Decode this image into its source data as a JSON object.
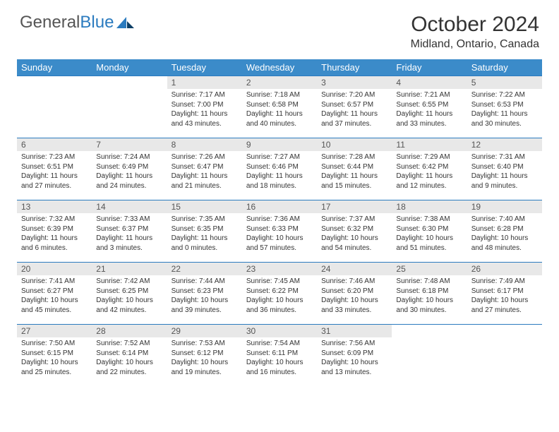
{
  "logo": {
    "text1": "General",
    "text2": "Blue"
  },
  "title": "October 2024",
  "location": "Midland, Ontario, Canada",
  "colors": {
    "header_bg": "#3b8bc9",
    "header_text": "#ffffff",
    "daynum_bg": "#e8e8e8",
    "border": "#2b7bbf",
    "logo_gray": "#555555",
    "logo_blue": "#2b7bbf"
  },
  "day_headers": [
    "Sunday",
    "Monday",
    "Tuesday",
    "Wednesday",
    "Thursday",
    "Friday",
    "Saturday"
  ],
  "weeks": [
    [
      null,
      null,
      {
        "n": "1",
        "sr": "7:17 AM",
        "ss": "7:00 PM",
        "dl": "11 hours and 43 minutes."
      },
      {
        "n": "2",
        "sr": "7:18 AM",
        "ss": "6:58 PM",
        "dl": "11 hours and 40 minutes."
      },
      {
        "n": "3",
        "sr": "7:20 AM",
        "ss": "6:57 PM",
        "dl": "11 hours and 37 minutes."
      },
      {
        "n": "4",
        "sr": "7:21 AM",
        "ss": "6:55 PM",
        "dl": "11 hours and 33 minutes."
      },
      {
        "n": "5",
        "sr": "7:22 AM",
        "ss": "6:53 PM",
        "dl": "11 hours and 30 minutes."
      }
    ],
    [
      {
        "n": "6",
        "sr": "7:23 AM",
        "ss": "6:51 PM",
        "dl": "11 hours and 27 minutes."
      },
      {
        "n": "7",
        "sr": "7:24 AM",
        "ss": "6:49 PM",
        "dl": "11 hours and 24 minutes."
      },
      {
        "n": "8",
        "sr": "7:26 AM",
        "ss": "6:47 PM",
        "dl": "11 hours and 21 minutes."
      },
      {
        "n": "9",
        "sr": "7:27 AM",
        "ss": "6:46 PM",
        "dl": "11 hours and 18 minutes."
      },
      {
        "n": "10",
        "sr": "7:28 AM",
        "ss": "6:44 PM",
        "dl": "11 hours and 15 minutes."
      },
      {
        "n": "11",
        "sr": "7:29 AM",
        "ss": "6:42 PM",
        "dl": "11 hours and 12 minutes."
      },
      {
        "n": "12",
        "sr": "7:31 AM",
        "ss": "6:40 PM",
        "dl": "11 hours and 9 minutes."
      }
    ],
    [
      {
        "n": "13",
        "sr": "7:32 AM",
        "ss": "6:39 PM",
        "dl": "11 hours and 6 minutes."
      },
      {
        "n": "14",
        "sr": "7:33 AM",
        "ss": "6:37 PM",
        "dl": "11 hours and 3 minutes."
      },
      {
        "n": "15",
        "sr": "7:35 AM",
        "ss": "6:35 PM",
        "dl": "11 hours and 0 minutes."
      },
      {
        "n": "16",
        "sr": "7:36 AM",
        "ss": "6:33 PM",
        "dl": "10 hours and 57 minutes."
      },
      {
        "n": "17",
        "sr": "7:37 AM",
        "ss": "6:32 PM",
        "dl": "10 hours and 54 minutes."
      },
      {
        "n": "18",
        "sr": "7:38 AM",
        "ss": "6:30 PM",
        "dl": "10 hours and 51 minutes."
      },
      {
        "n": "19",
        "sr": "7:40 AM",
        "ss": "6:28 PM",
        "dl": "10 hours and 48 minutes."
      }
    ],
    [
      {
        "n": "20",
        "sr": "7:41 AM",
        "ss": "6:27 PM",
        "dl": "10 hours and 45 minutes."
      },
      {
        "n": "21",
        "sr": "7:42 AM",
        "ss": "6:25 PM",
        "dl": "10 hours and 42 minutes."
      },
      {
        "n": "22",
        "sr": "7:44 AM",
        "ss": "6:23 PM",
        "dl": "10 hours and 39 minutes."
      },
      {
        "n": "23",
        "sr": "7:45 AM",
        "ss": "6:22 PM",
        "dl": "10 hours and 36 minutes."
      },
      {
        "n": "24",
        "sr": "7:46 AM",
        "ss": "6:20 PM",
        "dl": "10 hours and 33 minutes."
      },
      {
        "n": "25",
        "sr": "7:48 AM",
        "ss": "6:18 PM",
        "dl": "10 hours and 30 minutes."
      },
      {
        "n": "26",
        "sr": "7:49 AM",
        "ss": "6:17 PM",
        "dl": "10 hours and 27 minutes."
      }
    ],
    [
      {
        "n": "27",
        "sr": "7:50 AM",
        "ss": "6:15 PM",
        "dl": "10 hours and 25 minutes."
      },
      {
        "n": "28",
        "sr": "7:52 AM",
        "ss": "6:14 PM",
        "dl": "10 hours and 22 minutes."
      },
      {
        "n": "29",
        "sr": "7:53 AM",
        "ss": "6:12 PM",
        "dl": "10 hours and 19 minutes."
      },
      {
        "n": "30",
        "sr": "7:54 AM",
        "ss": "6:11 PM",
        "dl": "10 hours and 16 minutes."
      },
      {
        "n": "31",
        "sr": "7:56 AM",
        "ss": "6:09 PM",
        "dl": "10 hours and 13 minutes."
      },
      null,
      null
    ]
  ]
}
